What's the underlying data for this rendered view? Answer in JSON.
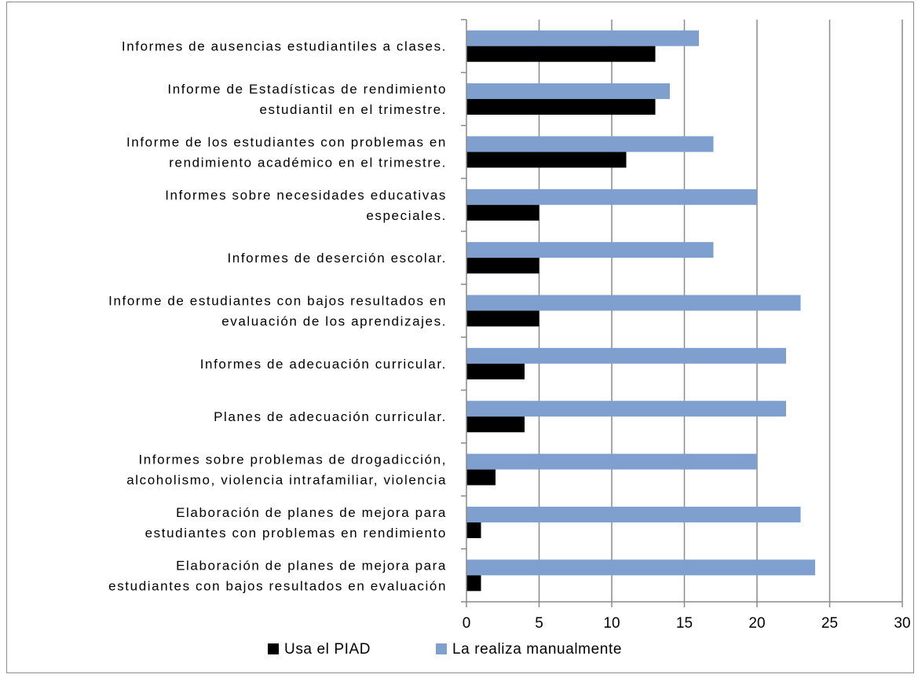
{
  "chart_data": {
    "type": "bar",
    "orientation": "horizontal",
    "categories": [
      [
        "Informes de ausencias estudiantiles a clases."
      ],
      [
        "Informe de Estadísticas de rendimiento",
        "estudiantil en el trimestre."
      ],
      [
        "Informe de los estudiantes con problemas en",
        "rendimiento académico en el trimestre."
      ],
      [
        "Informes sobre necesidades educativas",
        "especiales."
      ],
      [
        "Informes de deserción escolar."
      ],
      [
        "Informe de estudiantes con bajos resultados en",
        "evaluación de los aprendizajes."
      ],
      [
        "Informes de adecuación curricular."
      ],
      [
        "Planes de adecuación curricular."
      ],
      [
        "Informes sobre problemas de drogadicción,",
        "alcoholismo, violencia intrafamiliar, violencia"
      ],
      [
        "Elaboración de planes de mejora para",
        "estudiantes con problemas en rendimiento"
      ],
      [
        "Elaboración de planes de mejora para",
        "estudiantes con bajos resultados en evaluación"
      ]
    ],
    "series": [
      {
        "name": "Usa el PIAD",
        "color": "#000000",
        "values": [
          13,
          13,
          11,
          5,
          5,
          5,
          4,
          4,
          2,
          1,
          1
        ]
      },
      {
        "name": "La realiza manualmente",
        "color": "#7f9fcf",
        "values": [
          16,
          14,
          17,
          20,
          17,
          23,
          22,
          22,
          20,
          23,
          24
        ]
      }
    ],
    "xlim": [
      0,
      30
    ],
    "xticks": [
      "0",
      "5",
      "10",
      "15",
      "20",
      "25",
      "30"
    ],
    "grid": true,
    "legend_position": "bottom"
  }
}
